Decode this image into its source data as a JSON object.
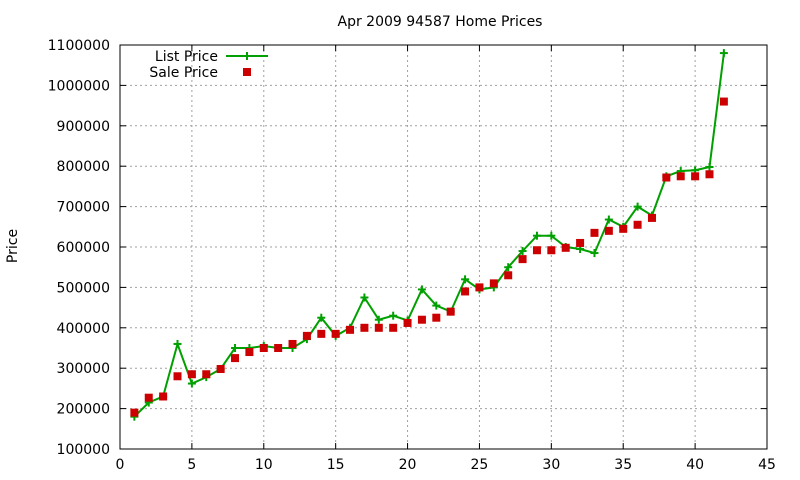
{
  "chart_data": {
    "type": "line",
    "title": "Apr 2009 94587 Home Prices",
    "xlabel": "",
    "ylabel": "Price",
    "xlim": [
      0,
      45
    ],
    "ylim": [
      100000,
      1100000
    ],
    "xticks": [
      "0",
      "5",
      "10",
      "15",
      "20",
      "25",
      "30",
      "35",
      "40",
      "45"
    ],
    "yticks": [
      "100000",
      "200000",
      "300000",
      "400000",
      "500000",
      "600000",
      "700000",
      "800000",
      "900000",
      "1000000",
      "1100000"
    ],
    "grid": true,
    "legend": "top-left",
    "series": [
      {
        "name": "List Price",
        "style": "line with plus markers",
        "color": "#00a000",
        "points": [
          [
            1,
            180000
          ],
          [
            2,
            215000
          ],
          [
            3,
            230000
          ],
          [
            4,
            360000
          ],
          [
            5,
            262000
          ],
          [
            6,
            278000
          ],
          [
            7,
            298000
          ],
          [
            8,
            350000
          ],
          [
            9,
            350000
          ],
          [
            10,
            355000
          ],
          [
            11,
            350000
          ],
          [
            12,
            350000
          ],
          [
            13,
            372000
          ],
          [
            14,
            425000
          ],
          [
            15,
            380000
          ],
          [
            16,
            400000
          ],
          [
            17,
            475000
          ],
          [
            18,
            420000
          ],
          [
            19,
            430000
          ],
          [
            20,
            418000
          ],
          [
            21,
            495000
          ],
          [
            22,
            455000
          ],
          [
            23,
            440000
          ],
          [
            24,
            520000
          ],
          [
            25,
            495000
          ],
          [
            26,
            500000
          ],
          [
            27,
            550000
          ],
          [
            28,
            590000
          ],
          [
            29,
            628000
          ],
          [
            30,
            628000
          ],
          [
            31,
            600000
          ],
          [
            32,
            595000
          ],
          [
            33,
            585000
          ],
          [
            34,
            668000
          ],
          [
            35,
            650000
          ],
          [
            36,
            700000
          ],
          [
            37,
            678000
          ],
          [
            38,
            775000
          ],
          [
            39,
            788000
          ],
          [
            40,
            790000
          ],
          [
            41,
            798000
          ],
          [
            42,
            1080000
          ]
        ]
      },
      {
        "name": "Sale Price",
        "style": "points",
        "color": "#cc0000",
        "points": [
          [
            1,
            190000
          ],
          [
            2,
            227000
          ],
          [
            3,
            230000
          ],
          [
            4,
            280000
          ],
          [
            5,
            285000
          ],
          [
            6,
            285000
          ],
          [
            7,
            298000
          ],
          [
            8,
            325000
          ],
          [
            9,
            340000
          ],
          [
            10,
            350000
          ],
          [
            11,
            350000
          ],
          [
            12,
            360000
          ],
          [
            13,
            380000
          ],
          [
            14,
            385000
          ],
          [
            15,
            385000
          ],
          [
            16,
            395000
          ],
          [
            17,
            400000
          ],
          [
            18,
            400000
          ],
          [
            19,
            400000
          ],
          [
            20,
            412000
          ],
          [
            21,
            420000
          ],
          [
            22,
            425000
          ],
          [
            23,
            440000
          ],
          [
            24,
            490000
          ],
          [
            25,
            500000
          ],
          [
            26,
            510000
          ],
          [
            27,
            530000
          ],
          [
            28,
            570000
          ],
          [
            29,
            592000
          ],
          [
            30,
            592000
          ],
          [
            31,
            598000
          ],
          [
            32,
            610000
          ],
          [
            33,
            635000
          ],
          [
            34,
            640000
          ],
          [
            35,
            645000
          ],
          [
            36,
            655000
          ],
          [
            37,
            672000
          ],
          [
            38,
            772000
          ],
          [
            39,
            775000
          ],
          [
            40,
            775000
          ],
          [
            41,
            780000
          ],
          [
            42,
            960000
          ]
        ]
      }
    ]
  }
}
